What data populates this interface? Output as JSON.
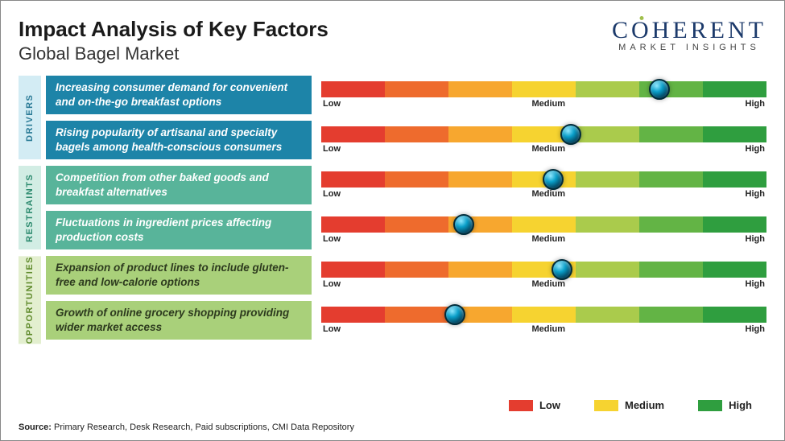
{
  "title": "Impact Analysis of Key Factors",
  "subtitle": "Global Bagel Market",
  "logo": {
    "main": "COHERENT",
    "sub": "MARKET INSIGHTS",
    "color": "#1c3a6b",
    "dot_color": "#a1c04d"
  },
  "gauge_colors": [
    "#e43d2f",
    "#ee6b2d",
    "#f7a72f",
    "#f6d330",
    "#aacb4c",
    "#63b445",
    "#2f9e3f"
  ],
  "tick_labels": {
    "low": "Low",
    "medium": "Medium",
    "high": "High"
  },
  "groups": [
    {
      "key": "drivers",
      "label": "DRIVERS",
      "label_bg": "#d3ecf4",
      "label_color": "#2a7a96",
      "factor_bg": "#1d84a8",
      "rows": [
        {
          "text": "Increasing consumer demand for convenient and on-the-go breakfast options",
          "marker_pct": 76
        },
        {
          "text": "Rising popularity of artisanal and specialty bagels among health-conscious consumers",
          "marker_pct": 56
        }
      ]
    },
    {
      "key": "restraints",
      "label": "RESTRAINTS",
      "label_bg": "#d2ede4",
      "label_color": "#2c8a6e",
      "factor_bg": "#58b49a",
      "rows": [
        {
          "text": "Competition from other baked goods and breakfast alternatives",
          "marker_pct": 52
        },
        {
          "text": "Fluctuations in ingredient prices affecting production costs",
          "marker_pct": 32
        }
      ]
    },
    {
      "key": "opportunities",
      "label": "OPPORTUNITIES",
      "label_bg": "#e3efcf",
      "label_color": "#5f8a2b",
      "factor_bg": "#a9d07a",
      "factor_text_color": "#2d3a1e",
      "rows": [
        {
          "text": "Expansion of product lines to include gluten-free and low-calorie options",
          "marker_pct": 54
        },
        {
          "text": "Growth of online grocery shopping providing wider market access",
          "marker_pct": 30
        }
      ]
    }
  ],
  "legend": [
    {
      "label": "Low",
      "color": "#e43d2f"
    },
    {
      "label": "Medium",
      "color": "#f6d330"
    },
    {
      "label": "High",
      "color": "#2f9e3f"
    }
  ],
  "source_label": "Source:",
  "source_text": "Primary Research, Desk Research, Paid subscriptions, CMI Data Repository",
  "typography": {
    "title_fontsize": 26,
    "subtitle_fontsize": 22,
    "factor_fontsize": 13.5,
    "tick_fontsize": 11
  },
  "background": "#ffffff"
}
